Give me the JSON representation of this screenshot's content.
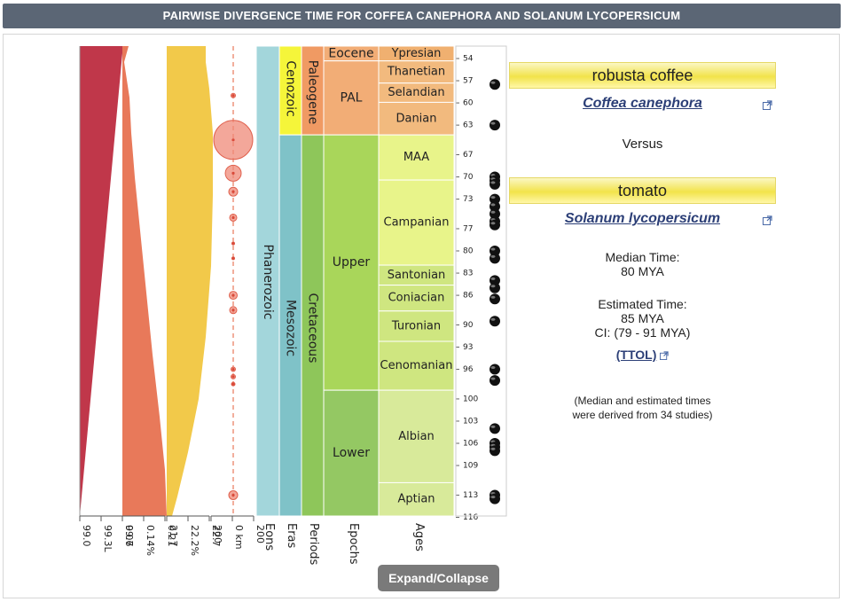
{
  "title": "PAIRWISE DIVERGENCE TIME FOR COFFEA CANEPHORA AND SOLANUM LYCOPERSICUM",
  "taxon_a": {
    "common": "robusta coffee",
    "scientific": "Coffea canephora"
  },
  "versus": "Versus",
  "taxon_b": {
    "common": "tomato",
    "scientific": "Solanum lycopersicum"
  },
  "median": {
    "label": "Median Time:",
    "value": "80 MYA"
  },
  "estimated": {
    "label": "Estimated Time:",
    "value": "85 MYA",
    "ci": "CI: (79 - 91 MYA)"
  },
  "ttol_link": "(TTOL)",
  "note_line1": "(Median and estimated times",
  "note_line2": "were derived from 34 studies)",
  "expand_button": "Expand/Collapse",
  "timescale": {
    "eons": [
      {
        "name": "Phanerozoic",
        "from": 54,
        "to": 117.5
      }
    ],
    "eras": [
      {
        "name": "Cenozoic",
        "from": 54,
        "to": 66
      },
      {
        "name": "Mesozoic",
        "from": 66,
        "to": 117.5
      }
    ],
    "periods": [
      {
        "name": "Paleogene",
        "from": 54,
        "to": 66
      },
      {
        "name": "Cretaceous",
        "from": 66,
        "to": 117.5
      }
    ],
    "epochs": [
      {
        "name": "Eocene",
        "from": 54,
        "to": 56
      },
      {
        "name": "PAL",
        "from": 56,
        "to": 66
      },
      {
        "name": "Upper",
        "from": 66,
        "to": 100.5
      },
      {
        "name": "Lower",
        "from": 100.5,
        "to": 117.5
      }
    ],
    "ages": [
      {
        "name": "Ypresian",
        "from": 54,
        "to": 56
      },
      {
        "name": "Thanetian",
        "from": 56,
        "to": 59
      },
      {
        "name": "Selandian",
        "from": 59,
        "to": 61.6
      },
      {
        "name": "Danian",
        "from": 61.6,
        "to": 66
      },
      {
        "name": "MAA",
        "from": 66,
        "to": 72.1
      },
      {
        "name": "Campanian",
        "from": 72.1,
        "to": 83.6
      },
      {
        "name": "Santonian",
        "from": 83.6,
        "to": 86.3
      },
      {
        "name": "Coniacian",
        "from": 86.3,
        "to": 89.8
      },
      {
        "name": "Turonian",
        "from": 89.8,
        "to": 93.9
      },
      {
        "name": "Cenomanian",
        "from": 93.9,
        "to": 100.5
      },
      {
        "name": "Albian",
        "from": 100.5,
        "to": 113
      },
      {
        "name": "Aptian",
        "from": 113,
        "to": 117.5
      }
    ],
    "ticks": [
      "54",
      "57",
      "60",
      "63",
      "67",
      "70",
      "73",
      "77",
      "80",
      "83",
      "86",
      "90",
      "93",
      "96",
      "100",
      "103",
      "106",
      "109",
      "113",
      "116"
    ],
    "column_labels": [
      "Eons",
      "Eras",
      "Periods",
      "Epochs",
      "Ages"
    ]
  },
  "study_times": [
    57.5,
    63,
    70,
    70.5,
    71,
    73,
    74,
    75,
    76,
    76.5,
    80,
    81,
    84,
    85,
    86.5,
    89.5,
    96,
    97.5,
    104,
    106,
    106.5,
    107,
    113,
    113.5
  ],
  "impact_sizes": [
    {
      "t": 59,
      "r": 2.5
    },
    {
      "t": 65,
      "r": 22
    },
    {
      "t": 69.5,
      "r": 9
    },
    {
      "t": 72,
      "r": 5
    },
    {
      "t": 75.5,
      "r": 4
    },
    {
      "t": 86,
      "r": 4.5
    },
    {
      "t": 88,
      "r": 4
    },
    {
      "t": 96,
      "r": 2.5
    },
    {
      "t": 97,
      "r": 2.5
    },
    {
      "t": 98,
      "r": 2
    },
    {
      "t": 113,
      "r": 5
    },
    {
      "t": 79,
      "r": 1.5
    },
    {
      "t": 81,
      "r": 1.5
    }
  ],
  "env_axes": [
    {
      "ticks": [
        "99.0",
        "99.3L",
        "99.6"
      ],
      "color": "#c0374a"
    },
    {
      "ticks": [
        "0.07",
        "0.14%",
        "0.21"
      ],
      "color": "#e8795a"
    },
    {
      "ticks": [
        "21.7",
        "22.2%",
        "22.7"
      ],
      "color": "#f2c94a"
    },
    {
      "ticks": [
        "200",
        "0 km",
        "200"
      ],
      "color": "#e8795a"
    }
  ],
  "colors": {
    "eon": "#a3d6db",
    "era_cenozoic": "#f5f53a",
    "era_mesozoic": "#7fc2c8",
    "period_paleogene": "#f09a63",
    "period_cretaceous": "#8ec65a",
    "epoch_paleo": "#f2ad76",
    "epoch_upper": "#a9d65a",
    "epoch_lower": "#94c863",
    "age_ypresian": "#f0b070",
    "age_paleocene": "#f2ba7e",
    "age_upper_light": "#e8f48a",
    "age_upper": "#cfe680",
    "age_lower": "#d8ea9a"
  }
}
